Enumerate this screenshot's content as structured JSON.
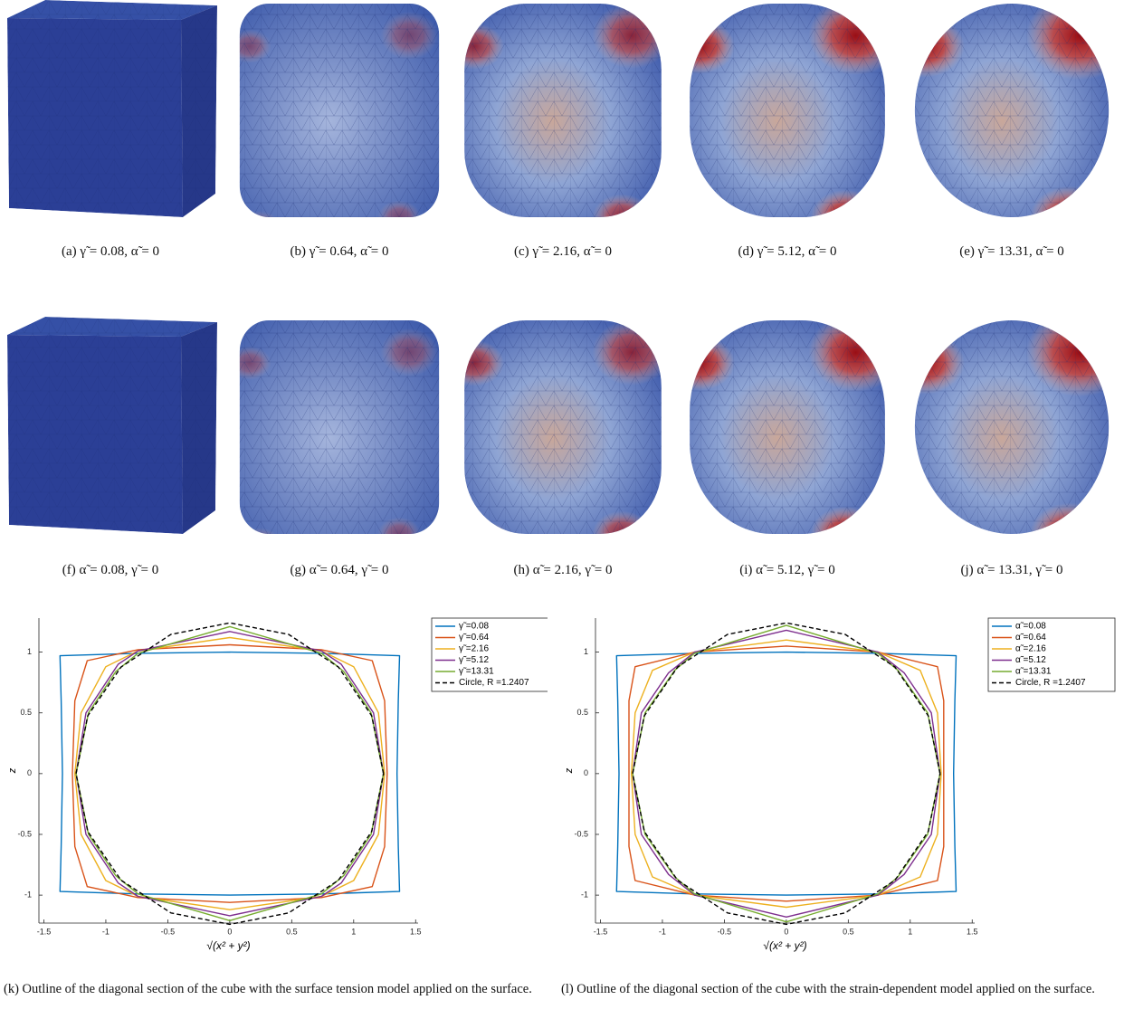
{
  "figures": [
    {
      "caption": "(a) γ̃ = 0.08, α̃ = 0"
    },
    {
      "caption": "(b) γ̃ = 0.64, α̃ = 0"
    },
    {
      "caption": "(c) γ̃ = 2.16, α̃ = 0"
    },
    {
      "caption": "(d) γ̃ = 5.12, α̃ = 0"
    },
    {
      "caption": "(e) γ̃ = 13.31, α̃ = 0"
    },
    {
      "caption": "(f) α̃ = 0.08, γ̃ = 0"
    },
    {
      "caption": "(g) α̃ = 0.64, γ̃ = 0"
    },
    {
      "caption": "(h) α̃ = 2.16, γ̃ = 0"
    },
    {
      "caption": "(i) α̃ = 5.12, γ̃ = 0"
    },
    {
      "caption": "(j) α̃ = 13.31, γ̃ = 0"
    }
  ],
  "chart_data": [
    {
      "type": "line",
      "caption": "(k) Outline of the diagonal section of the cube with the surface tension model applied on the surface.",
      "xlabel": "√(x² + y²)",
      "ylabel": "z",
      "xlim": [
        -1.54,
        1.52
      ],
      "ylim": [
        -1.23,
        1.28
      ],
      "xticks": [
        -1.5,
        -1,
        -0.5,
        0,
        0.5,
        1,
        1.5
      ],
      "yticks": [
        -1,
        -0.5,
        0,
        0.5,
        1
      ],
      "legend": "outside-right",
      "series": [
        {
          "name": "γ̃ =0.08",
          "color": "#0072bd",
          "dashed": false,
          "x": [
            1.35,
            1.36,
            1.37,
            0.74,
            0,
            -0.74,
            -1.37,
            -1.36,
            -1.35,
            -1.36,
            -1.37,
            -0.74,
            0,
            0.74,
            1.37,
            1.36,
            1.35
          ],
          "values": [
            0,
            0.6,
            0.97,
            0.99,
            1.0,
            0.99,
            0.97,
            0.6,
            0,
            -0.6,
            -0.97,
            -0.99,
            -1.0,
            -0.99,
            -0.97,
            -0.6,
            0
          ]
        },
        {
          "name": "γ̃ =0.64",
          "color": "#d95319",
          "dashed": false,
          "x": [
            1.27,
            1.25,
            1.15,
            0.74,
            0,
            -0.74,
            -1.15,
            -1.25,
            -1.27,
            -1.25,
            -1.15,
            -0.74,
            0,
            0.74,
            1.15,
            1.25,
            1.27
          ],
          "values": [
            0,
            0.6,
            0.93,
            1.02,
            1.06,
            1.02,
            0.93,
            0.6,
            0,
            -0.6,
            -0.93,
            -1.02,
            -1.06,
            -1.02,
            -0.93,
            -0.6,
            0
          ]
        },
        {
          "name": "γ̃ =2.16",
          "color": "#edb120",
          "dashed": false,
          "x": [
            1.25,
            1.2,
            1.0,
            0.74,
            0,
            -0.74,
            -1.0,
            -1.2,
            -1.25,
            -1.2,
            -1.0,
            -0.74,
            0,
            0.74,
            1.0,
            1.2,
            1.25
          ],
          "values": [
            0,
            0.5,
            0.88,
            1.01,
            1.12,
            1.01,
            0.88,
            0.5,
            0,
            -0.5,
            -0.88,
            -1.01,
            -1.12,
            -1.01,
            -0.88,
            -0.5,
            0
          ]
        },
        {
          "name": "γ̃ =5.12",
          "color": "#7e2f8e",
          "dashed": false,
          "x": [
            1.24,
            1.16,
            0.9,
            0.74,
            0,
            -0.74,
            -0.9,
            -1.16,
            -1.24,
            -1.16,
            -0.9,
            -0.74,
            0,
            0.74,
            0.9,
            1.16,
            1.24
          ],
          "values": [
            0,
            0.5,
            0.9,
            1.01,
            1.17,
            1.01,
            0.9,
            0.5,
            0,
            -0.5,
            -0.9,
            -1.01,
            -1.17,
            -1.01,
            -0.9,
            -0.5,
            0
          ]
        },
        {
          "name": "γ̃ =13.31",
          "color": "#77ac30",
          "dashed": false,
          "x": [
            1.24,
            1.14,
            0.92,
            0.74,
            0,
            -0.74,
            -0.92,
            -1.14,
            -1.24,
            -1.14,
            -0.92,
            -0.74,
            0,
            0.74,
            0.92,
            1.14,
            1.24
          ],
          "values": [
            0,
            0.5,
            0.84,
            0.99,
            1.21,
            0.99,
            0.84,
            0.5,
            0,
            -0.5,
            -0.84,
            -0.99,
            -1.21,
            -0.99,
            -0.84,
            -0.5,
            0
          ]
        },
        {
          "name": "Circle, R =1.2407",
          "color": "#000000",
          "dashed": true,
          "x": [
            1.2407,
            1.1463,
            0.8773,
            0.4748,
            0,
            -0.4748,
            -0.8773,
            -1.1463,
            -1.2407,
            -1.1463,
            -0.8773,
            -0.4748,
            0,
            0.4748,
            0.8773,
            1.1463,
            1.2407
          ],
          "values": [
            0,
            0.4748,
            0.8773,
            1.1463,
            1.2407,
            1.1463,
            0.8773,
            0.4748,
            0,
            -0.4748,
            -0.8773,
            -1.1463,
            -1.2407,
            -1.1463,
            -0.8773,
            -0.4748,
            0
          ]
        }
      ]
    },
    {
      "type": "line",
      "caption": "(l) Outline of the diagonal section of the cube with the strain-dependent model applied on the surface.",
      "xlabel": "√(x² + y²)",
      "ylabel": "z",
      "xlim": [
        -1.54,
        1.52
      ],
      "ylim": [
        -1.23,
        1.28
      ],
      "xticks": [
        -1.5,
        -1,
        -0.5,
        0,
        0.5,
        1,
        1.5
      ],
      "yticks": [
        -1,
        -0.5,
        0,
        0.5,
        1
      ],
      "legend": "outside-right",
      "series": [
        {
          "name": "α̃ =0.08",
          "color": "#0072bd",
          "dashed": false,
          "x": [
            1.35,
            1.36,
            1.37,
            0.74,
            0,
            -0.74,
            -1.37,
            -1.36,
            -1.35,
            -1.36,
            -1.37,
            -0.74,
            0,
            0.74,
            1.37,
            1.36,
            1.35
          ],
          "values": [
            0,
            0.6,
            0.97,
            0.99,
            1.0,
            0.99,
            0.97,
            0.6,
            0,
            -0.6,
            -0.97,
            -0.99,
            -1.0,
            -0.99,
            -0.97,
            -0.6,
            0
          ]
        },
        {
          "name": "α̃ =0.64",
          "color": "#d95319",
          "dashed": false,
          "x": [
            1.27,
            1.27,
            1.22,
            0.74,
            0,
            -0.74,
            -1.22,
            -1.27,
            -1.27,
            -1.27,
            -1.22,
            -0.74,
            0,
            0.74,
            1.22,
            1.27,
            1.27
          ],
          "values": [
            0,
            0.6,
            0.88,
            1.0,
            1.05,
            1.0,
            0.88,
            0.6,
            0,
            -0.6,
            -0.88,
            -1.0,
            -1.05,
            -1.0,
            -0.88,
            -0.6,
            0
          ]
        },
        {
          "name": "α̃ =2.16",
          "color": "#edb120",
          "dashed": false,
          "x": [
            1.25,
            1.22,
            1.08,
            0.74,
            0,
            -0.74,
            -1.08,
            -1.22,
            -1.25,
            -1.22,
            -1.08,
            -0.74,
            0,
            0.74,
            1.08,
            1.22,
            1.25
          ],
          "values": [
            0,
            0.5,
            0.85,
            1.0,
            1.1,
            1.0,
            0.85,
            0.5,
            0,
            -0.5,
            -0.85,
            -1.0,
            -1.1,
            -1.0,
            -0.85,
            -0.5,
            0
          ]
        },
        {
          "name": "α̃ =5.12",
          "color": "#7e2f8e",
          "dashed": false,
          "x": [
            1.24,
            1.17,
            0.95,
            0.74,
            0,
            -0.74,
            -0.95,
            -1.17,
            -1.24,
            -1.17,
            -0.95,
            -0.74,
            0,
            0.74,
            0.95,
            1.17,
            1.24
          ],
          "values": [
            0,
            0.5,
            0.83,
            1.0,
            1.18,
            1.0,
            0.83,
            0.5,
            0,
            -0.5,
            -0.83,
            -1.0,
            -1.18,
            -1.0,
            -0.83,
            -0.5,
            0
          ]
        },
        {
          "name": "α̃ =13.31",
          "color": "#77ac30",
          "dashed": false,
          "x": [
            1.24,
            1.14,
            0.9,
            0.74,
            0,
            -0.74,
            -0.9,
            -1.14,
            -1.24,
            -1.14,
            -0.9,
            -0.74,
            0,
            0.74,
            0.9,
            1.14,
            1.24
          ],
          "values": [
            0,
            0.5,
            0.85,
            0.99,
            1.22,
            0.99,
            0.85,
            0.5,
            0,
            -0.5,
            -0.85,
            -0.99,
            -1.22,
            -0.99,
            -0.85,
            -0.5,
            0
          ]
        },
        {
          "name": "Circle, R =1.2407",
          "color": "#000000",
          "dashed": true,
          "x": [
            1.2407,
            1.1463,
            0.8773,
            0.4748,
            0,
            -0.4748,
            -0.8773,
            -1.1463,
            -1.2407,
            -1.1463,
            -0.8773,
            -0.4748,
            0,
            0.4748,
            0.8773,
            1.1463,
            1.2407
          ],
          "values": [
            0,
            0.4748,
            0.8773,
            1.1463,
            1.2407,
            1.1463,
            0.8773,
            0.4748,
            0,
            -0.4748,
            -0.8773,
            -1.1463,
            -1.2407,
            -1.1463,
            -0.8773,
            -0.4748,
            0
          ]
        }
      ]
    }
  ]
}
